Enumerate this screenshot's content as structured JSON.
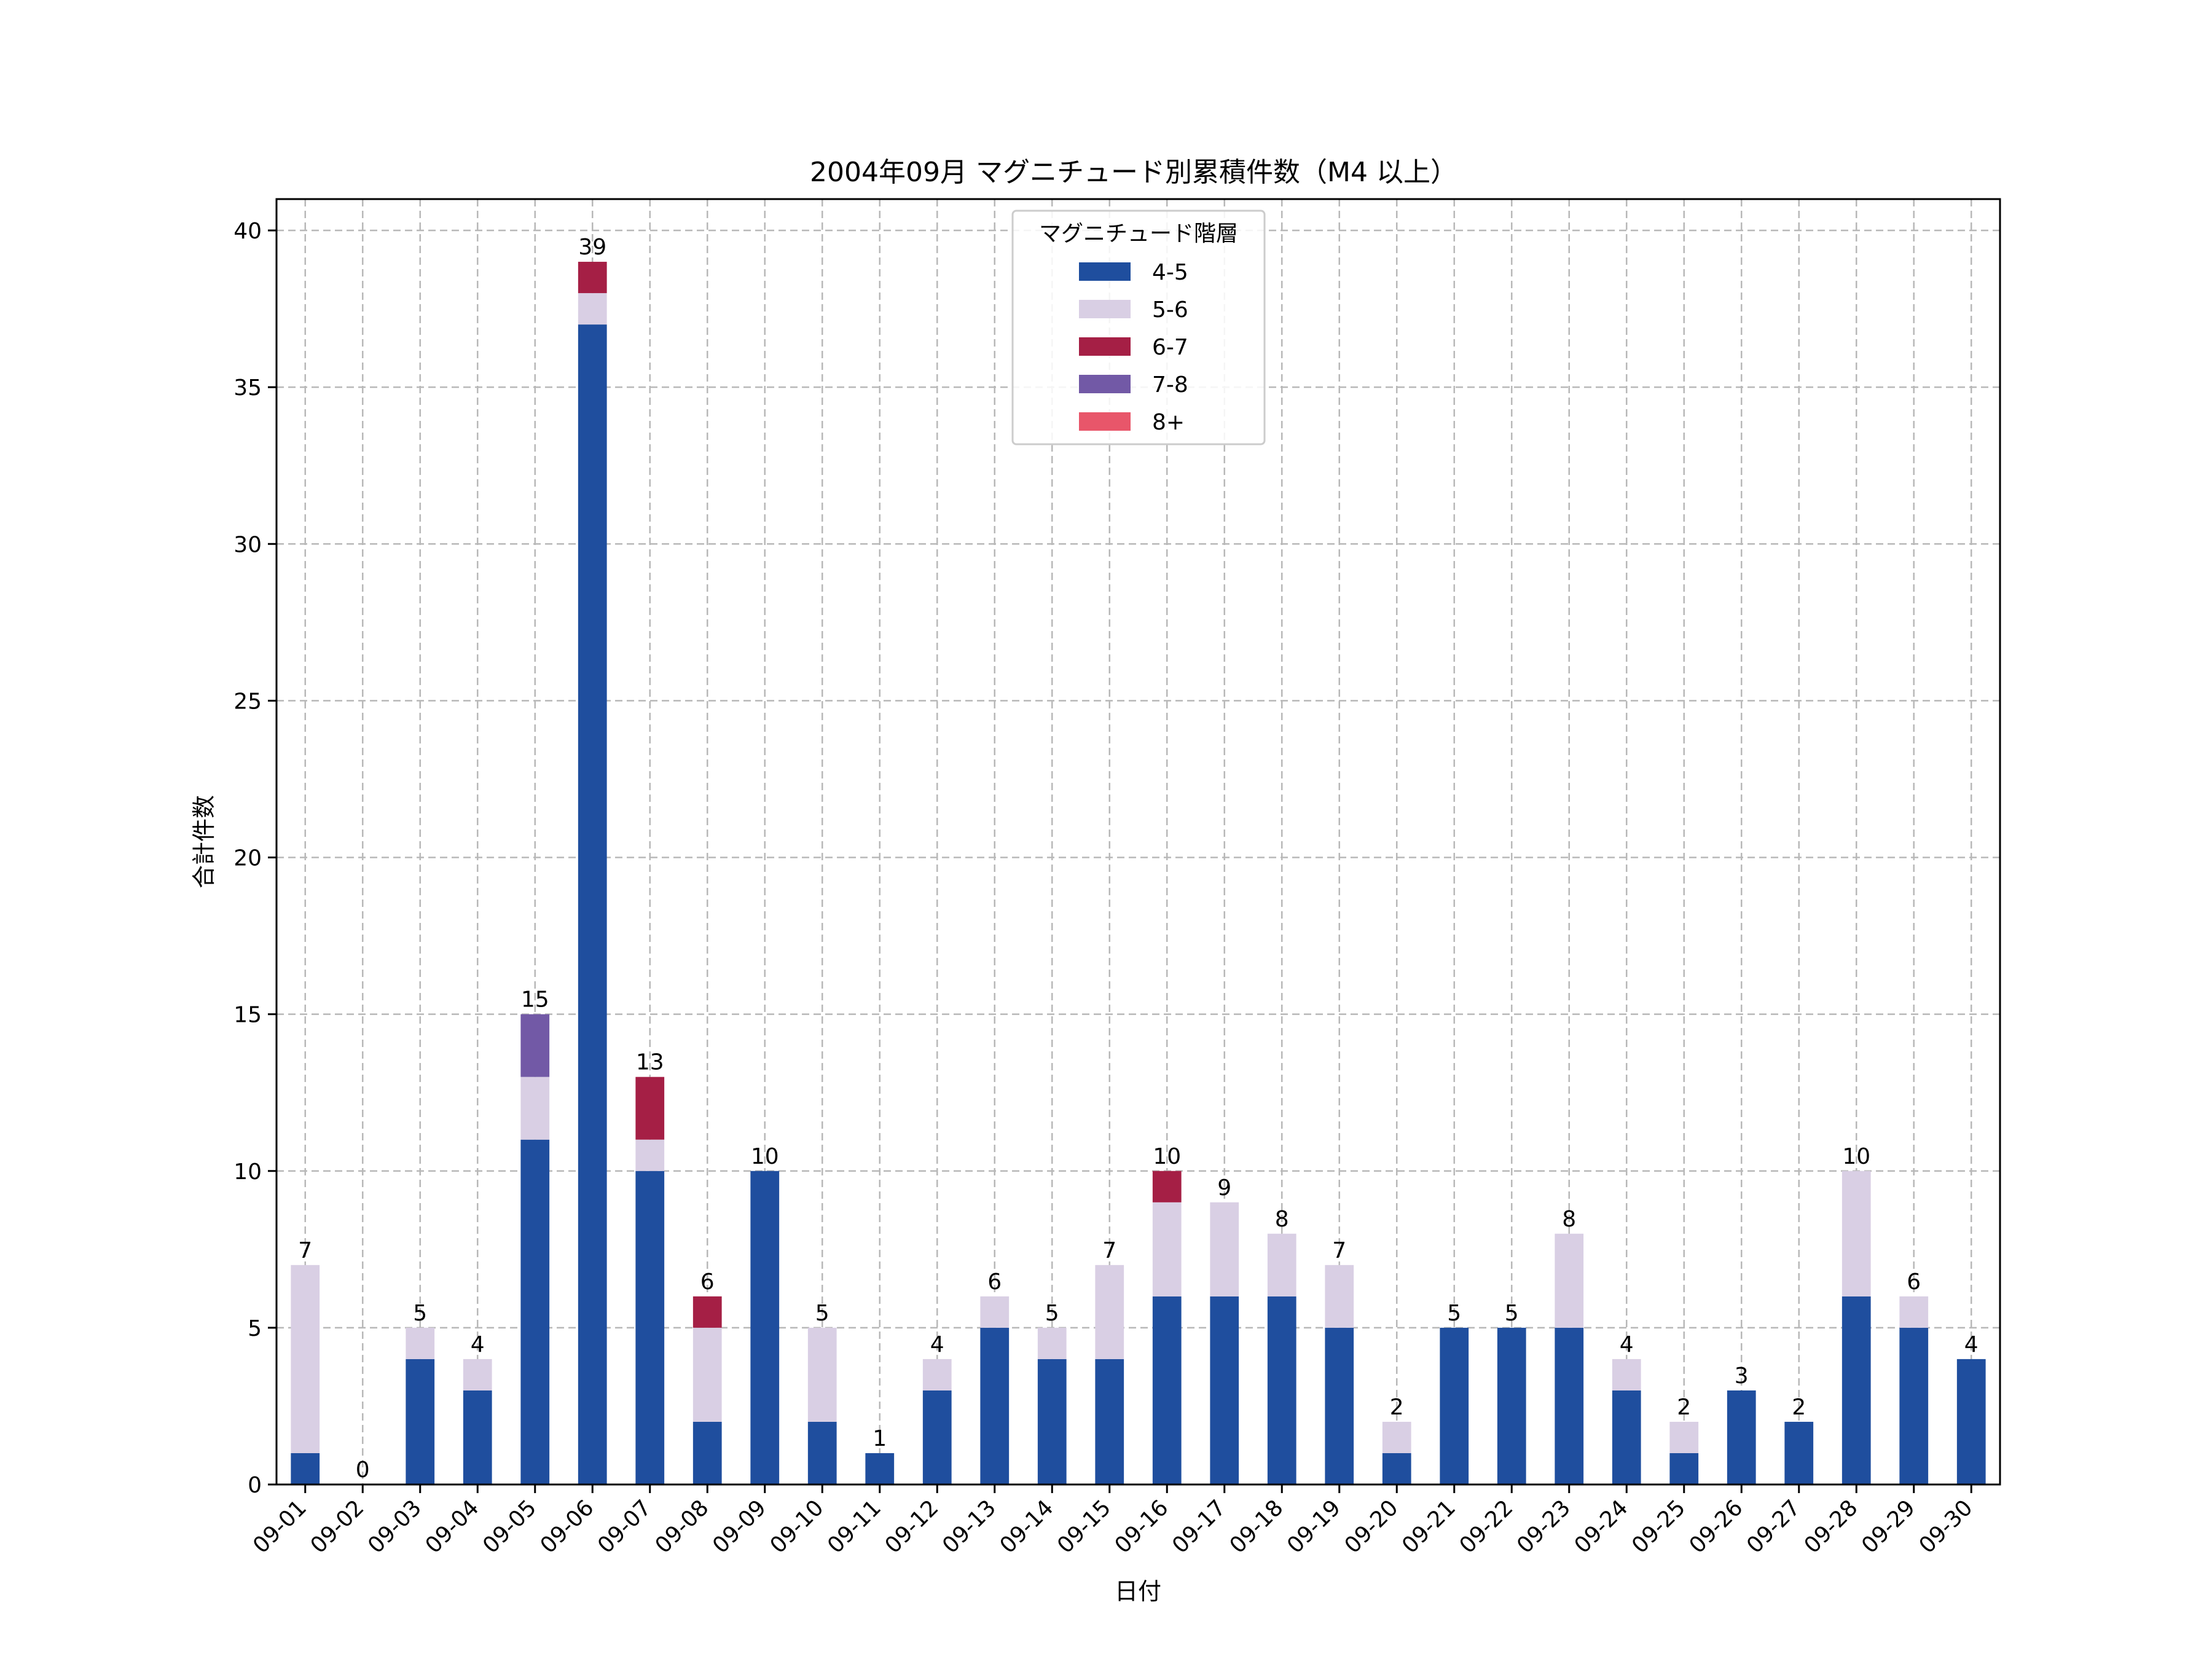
{
  "chart_data": {
    "type": "bar",
    "stacked": true,
    "title": "2004年09月 マグニチュード別累積件数（M4 以上）",
    "xlabel": "日付",
    "ylabel": "合計件数",
    "ylim": [
      0,
      41
    ],
    "yticks": [
      0,
      5,
      10,
      15,
      20,
      25,
      30,
      35,
      40
    ],
    "grid": true,
    "legend": {
      "title": "マグニチュード階層",
      "placement": "top-center"
    },
    "categories": [
      "09-01",
      "09-02",
      "09-03",
      "09-04",
      "09-05",
      "09-06",
      "09-07",
      "09-08",
      "09-09",
      "09-10",
      "09-11",
      "09-12",
      "09-13",
      "09-14",
      "09-15",
      "09-16",
      "09-17",
      "09-18",
      "09-19",
      "09-20",
      "09-21",
      "09-22",
      "09-23",
      "09-24",
      "09-25",
      "09-26",
      "09-27",
      "09-28",
      "09-29",
      "09-30"
    ],
    "series": [
      {
        "name": "4-5",
        "color": "#1f4e9e",
        "values": [
          1,
          0,
          4,
          3,
          11,
          37,
          10,
          2,
          10,
          2,
          1,
          3,
          5,
          4,
          4,
          6,
          6,
          6,
          5,
          1,
          5,
          5,
          5,
          3,
          1,
          3,
          2,
          6,
          5,
          4
        ]
      },
      {
        "name": "5-6",
        "color": "#d9cfe4",
        "values": [
          6,
          0,
          1,
          1,
          2,
          1,
          1,
          3,
          0,
          3,
          0,
          1,
          1,
          1,
          3,
          3,
          3,
          2,
          2,
          1,
          0,
          0,
          3,
          1,
          1,
          0,
          0,
          4,
          1,
          0
        ]
      },
      {
        "name": "6-7",
        "color": "#a51f45",
        "values": [
          0,
          0,
          0,
          0,
          0,
          1,
          2,
          1,
          0,
          0,
          0,
          0,
          0,
          0,
          0,
          1,
          0,
          0,
          0,
          0,
          0,
          0,
          0,
          0,
          0,
          0,
          0,
          0,
          0,
          0
        ]
      },
      {
        "name": "7-8",
        "color": "#7259a6",
        "values": [
          0,
          0,
          0,
          0,
          2,
          0,
          0,
          0,
          0,
          0,
          0,
          0,
          0,
          0,
          0,
          0,
          0,
          0,
          0,
          0,
          0,
          0,
          0,
          0,
          0,
          0,
          0,
          0,
          0,
          0
        ]
      },
      {
        "name": "8+",
        "color": "#e8566a",
        "values": [
          0,
          0,
          0,
          0,
          0,
          0,
          0,
          0,
          0,
          0,
          0,
          0,
          0,
          0,
          0,
          0,
          0,
          0,
          0,
          0,
          0,
          0,
          0,
          0,
          0,
          0,
          0,
          0,
          0,
          0
        ]
      }
    ],
    "totals": [
      7,
      0,
      5,
      4,
      15,
      39,
      13,
      6,
      10,
      5,
      1,
      4,
      6,
      5,
      7,
      10,
      9,
      8,
      7,
      2,
      5,
      5,
      8,
      4,
      2,
      3,
      2,
      10,
      6,
      4
    ]
  }
}
